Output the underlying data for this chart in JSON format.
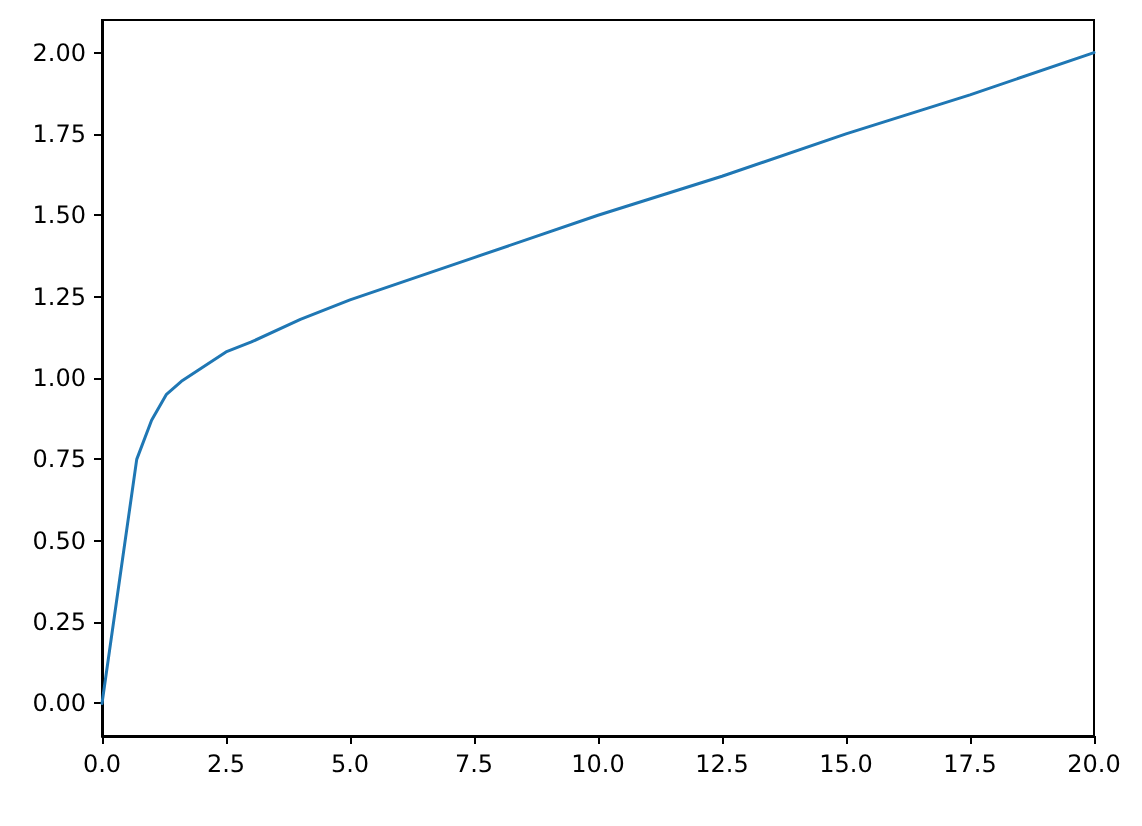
{
  "chart_data": {
    "type": "line",
    "x": [
      0,
      0.7,
      1,
      1.3,
      1.6,
      2,
      2.5,
      3,
      4,
      5,
      7.5,
      10,
      12.5,
      15,
      17.5,
      20
    ],
    "series": [
      {
        "color": "#1f77b4",
        "values": [
          0,
          0.75,
          0.87,
          0.95,
          0.99,
          1.03,
          1.08,
          1.11,
          1.18,
          1.24,
          1.37,
          1.5,
          1.62,
          1.75,
          1.87,
          2.0
        ]
      }
    ],
    "xlim": [
      0,
      20
    ],
    "xticks": [
      {
        "value": 0,
        "label": "0.0"
      },
      2.5,
      {
        "value": 5,
        "label": "5.0"
      },
      7.5,
      {
        "value": 10,
        "label": "10.0"
      },
      12.5,
      {
        "value": 15,
        "label": "15.0"
      },
      17.5,
      {
        "value": 20,
        "label": "20.0"
      }
    ],
    "ylim": [
      -0.1,
      2.1
    ],
    "yticks": [
      {
        "value": 0,
        "label": "0.00"
      },
      {
        "value": 0.25,
        "label": "0.25"
      },
      {
        "value": 0.5,
        "label": "0.50"
      },
      {
        "value": 0.75,
        "label": "0.75"
      },
      {
        "value": 1,
        "label": "1.00"
      },
      {
        "value": 1.25,
        "label": "1.25"
      },
      {
        "value": 1.5,
        "label": "1.50"
      },
      {
        "value": 1.75,
        "label": "1.75"
      },
      {
        "value": 2,
        "label": "2.00"
      }
    ],
    "grid": false,
    "marker": "none",
    "line_style": "solid"
  }
}
